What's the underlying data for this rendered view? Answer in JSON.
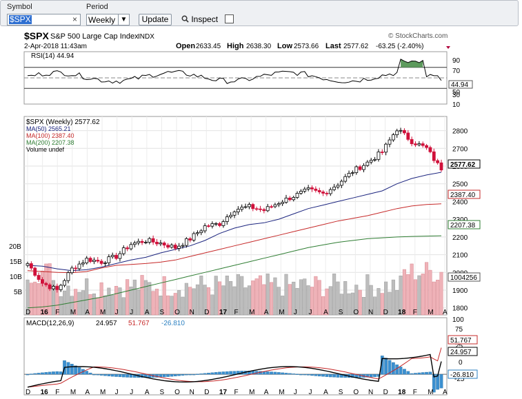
{
  "toolbar": {
    "symbol_label": "Symbol",
    "symbol_value": "$SPX",
    "period_label": "Period",
    "period_value": "Weekly",
    "update_label": "Update",
    "inspect_label": "Inspect"
  },
  "header": {
    "symbol": "$SPX",
    "name": "S&P 500 Large Cap Index",
    "exchange": "INDX",
    "source": "© StockCharts.com",
    "date": "2-Apr-2018 11:43am",
    "open_label": "Open",
    "open": "2633.45",
    "high_label": "High",
    "high": "2638.30",
    "low_label": "Low",
    "low": "2573.66",
    "last_label": "Last",
    "last": "2577.62",
    "change": "-63.25 (-2.40%)"
  },
  "rsi_panel": {
    "label": "RSI(14) 44.94",
    "value_tag": "44.94",
    "axis_labels": [
      "90",
      "70",
      "50",
      "30",
      "10"
    ]
  },
  "price_panel": {
    "legend": [
      {
        "text": "$SPX (Weekly) 2577.62",
        "color": "#000000"
      },
      {
        "text": "MA(50) 2565.21",
        "color": "#1a237e"
      },
      {
        "text": "MA(100) 2387.40",
        "color": "#c62828"
      },
      {
        "text": "MA(200) 2207.38",
        "color": "#2e7d32"
      },
      {
        "text": "Volume undef",
        "color": "#000000"
      }
    ],
    "price_ticks": [
      "2800",
      "2700",
      "2600",
      "2500",
      "2400",
      "2300",
      "2200",
      "2100",
      "2000",
      "1900",
      "1800"
    ],
    "volume_ticks": [
      "20B",
      "15B",
      "10B",
      "5B"
    ],
    "tags": {
      "last": "2577.62",
      "ma100": "2387.40",
      "ma200": "2207.38",
      "volume": "1004256"
    }
  },
  "macd_panel": {
    "label": "MACD(12,26,9)",
    "macd": "24.957",
    "signal": "51.767",
    "hist": "-26.810",
    "tags": [
      "51.767",
      "24.957",
      "-26.810"
    ],
    "axis_labels": [
      "100",
      "75",
      "50",
      "25",
      "0",
      "-25"
    ]
  },
  "x_axis_labels": [
    "D",
    "16",
    "F",
    "M",
    "A",
    "M",
    "J",
    "J",
    "A",
    "S",
    "O",
    "N",
    "D",
    "17",
    "F",
    "M",
    "A",
    "M",
    "J",
    "J",
    "A",
    "S",
    "O",
    "N",
    "D",
    "18",
    "F",
    "M",
    "A"
  ],
  "colors": {
    "up": "#000000",
    "down": "#d0103a",
    "ma50": "#1a237e",
    "ma100": "#c62828",
    "ma200": "#2e7d32",
    "rsi_fill": "#5d9a5d",
    "macd_hist": "#3a8fd0"
  },
  "chart_data": {
    "type": "candlestick",
    "title": "$SPX S&P 500 Large Cap Index INDX",
    "period": "Weekly",
    "x": [
      "2015-12",
      "2016-01",
      "2016-02",
      "2016-03",
      "2016-04",
      "2016-05",
      "2016-06",
      "2016-07",
      "2016-08",
      "2016-09",
      "2016-10",
      "2016-11",
      "2016-12",
      "2017-01",
      "2017-02",
      "2017-03",
      "2017-04",
      "2017-05",
      "2017-06",
      "2017-07",
      "2017-08",
      "2017-09",
      "2017-10",
      "2017-11",
      "2017-12",
      "2018-01",
      "2018-02",
      "2018-03",
      "2018-04"
    ],
    "series": [
      {
        "name": "$SPX (Weekly)",
        "values": [
          2050,
          1940,
          1900,
          2020,
          2075,
          2060,
          2090,
          2160,
          2180,
          2165,
          2140,
          2190,
          2260,
          2275,
          2355,
          2370,
          2350,
          2395,
          2430,
          2465,
          2445,
          2500,
          2570,
          2620,
          2680,
          2810,
          2740,
          2700,
          2578
        ]
      },
      {
        "name": "MA(50)",
        "values": [
          2040,
          2035,
          2020,
          2010,
          2015,
          2030,
          2050,
          2070,
          2085,
          2110,
          2130,
          2150,
          2180,
          2220,
          2250,
          2270,
          2280,
          2300,
          2330,
          2360,
          2380,
          2400,
          2420,
          2440,
          2460,
          2500,
          2530,
          2550,
          2565
        ]
      },
      {
        "name": "MA(100)",
        "values": [
          2010,
          2005,
          2000,
          1998,
          2005,
          2025,
          2040,
          2045,
          2050,
          2058,
          2070,
          2090,
          2110,
          2130,
          2150,
          2170,
          2190,
          2210,
          2230,
          2250,
          2270,
          2290,
          2305,
          2320,
          2340,
          2360,
          2375,
          2383,
          2387
        ]
      },
      {
        "name": "MA(200)",
        "values": [
          1800,
          1805,
          1815,
          1830,
          1845,
          1860,
          1880,
          1900,
          1920,
          1940,
          1960,
          1980,
          2000,
          2020,
          2040,
          2060,
          2080,
          2100,
          2120,
          2140,
          2155,
          2170,
          2180,
          2190,
          2195,
          2200,
          2203,
          2205,
          2207
        ]
      }
    ],
    "last": 2577.62,
    "open": 2633.45,
    "high": 2638.3,
    "low": 2573.66,
    "ylim": [
      1760,
      2880
    ],
    "rsi": {
      "label": "RSI(14)",
      "last": 44.94,
      "ylim": [
        0,
        100
      ]
    },
    "macd": {
      "macd": 24.957,
      "signal": 51.767,
      "histogram": -26.81,
      "ylim": [
        -40,
        110
      ]
    },
    "grid": true
  }
}
